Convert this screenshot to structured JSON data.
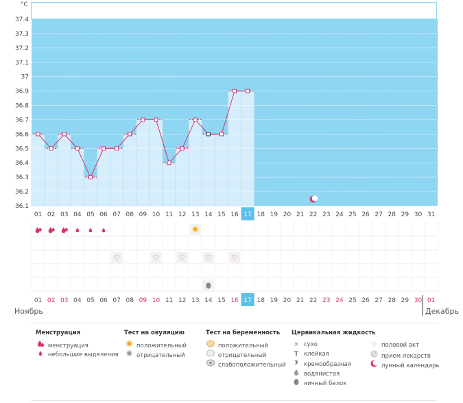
{
  "chart_data": {
    "type": "line",
    "ylabel": "°C",
    "y_ticks": [
      "37.4",
      "37.3",
      "37.2",
      "37.1",
      "37",
      "36.9",
      "36.8",
      "36.7",
      "36.6",
      "36.5",
      "36.4",
      "36.3",
      "36.2",
      "36.1"
    ],
    "ylim": [
      36.1,
      37.4
    ],
    "days": [
      "01",
      "02",
      "03",
      "04",
      "05",
      "06",
      "07",
      "08",
      "09",
      "10",
      "11",
      "12",
      "13",
      "14",
      "15",
      "16",
      "17",
      "18",
      "19",
      "20",
      "21",
      "22",
      "23",
      "24",
      "25",
      "26",
      "27",
      "28",
      "29",
      "30",
      "31"
    ],
    "series": [
      {
        "values": [
          36.6,
          36.5,
          36.6,
          36.5,
          36.3,
          36.5,
          36.5,
          36.6,
          36.7,
          36.7,
          36.4,
          36.5,
          36.7,
          36.6,
          36.6,
          36.9,
          36.9
        ]
      }
    ],
    "current_day_index": 16,
    "grid": true,
    "colors": {
      "band": "#8ed6f2",
      "bar": "#d6eefb",
      "line": "#d6336c",
      "today": "#5cc0e8"
    }
  },
  "markers": {
    "menstruation_heavy_days": [
      1,
      2,
      3
    ],
    "menstruation_light_days": [
      4,
      5,
      6
    ],
    "ovulation_positive_day": 13,
    "intercourse_days": [
      7,
      10,
      12,
      14,
      16
    ],
    "egg_white_day": 14,
    "lunar_day": 22
  },
  "bottom_days": [
    {
      "t": "01",
      "c": "#555"
    },
    {
      "t": "02",
      "c": "#d6336c"
    },
    {
      "t": "03",
      "c": "#d6336c"
    },
    {
      "t": "04",
      "c": "#555"
    },
    {
      "t": "05",
      "c": "#555"
    },
    {
      "t": "06",
      "c": "#555"
    },
    {
      "t": "07",
      "c": "#555"
    },
    {
      "t": "08",
      "c": "#555"
    },
    {
      "t": "09",
      "c": "#d6336c"
    },
    {
      "t": "10",
      "c": "#d6336c"
    },
    {
      "t": "11",
      "c": "#555"
    },
    {
      "t": "12",
      "c": "#555"
    },
    {
      "t": "13",
      "c": "#555"
    },
    {
      "t": "14",
      "c": "#555"
    },
    {
      "t": "15",
      "c": "#555"
    },
    {
      "t": "16",
      "c": "#d6336c"
    },
    {
      "t": "17",
      "c": "#ffffff"
    },
    {
      "t": "18",
      "c": "#555"
    },
    {
      "t": "19",
      "c": "#555"
    },
    {
      "t": "20",
      "c": "#555"
    },
    {
      "t": "21",
      "c": "#555"
    },
    {
      "t": "22",
      "c": "#555"
    },
    {
      "t": "23",
      "c": "#d6336c"
    },
    {
      "t": "24",
      "c": "#d6336c"
    },
    {
      "t": "25",
      "c": "#555"
    },
    {
      "t": "26",
      "c": "#555"
    },
    {
      "t": "27",
      "c": "#555"
    },
    {
      "t": "28",
      "c": "#555"
    },
    {
      "t": "29",
      "c": "#555"
    },
    {
      "t": "30",
      "c": "#d6336c"
    },
    {
      "t": "01",
      "c": "#d6336c"
    }
  ],
  "months": {
    "left": "Ноябрь",
    "right": "Декабрь"
  },
  "legend": {
    "menstruation": {
      "title": "Менструация",
      "items": [
        {
          "label": "менструация",
          "icon": "menstruation-heavy-icon"
        },
        {
          "label": "небольшие выделения",
          "icon": "menstruation-light-icon"
        }
      ]
    },
    "ovulation": {
      "title": "Тест на овуляцию",
      "items": [
        {
          "label": "положительный",
          "icon": "ovulation-positive-icon"
        },
        {
          "label": "отрицательный",
          "icon": "ovulation-negative-icon"
        }
      ]
    },
    "pregnancy": {
      "title": "Тест на беременность",
      "items": [
        {
          "label": "положительный",
          "icon": "pregnancy-positive-icon"
        },
        {
          "label": "отрицательный",
          "icon": "pregnancy-negative-icon"
        },
        {
          "label": "слабоположительный",
          "icon": "pregnancy-weak-icon"
        }
      ]
    },
    "fluid": {
      "title": "Цервикальная жидкость",
      "items": [
        {
          "label": "сухо",
          "icon": "dry-icon"
        },
        {
          "label": "клейкая",
          "icon": "sticky-icon"
        },
        {
          "label": "кремообразная",
          "icon": "creamy-icon"
        },
        {
          "label": "водянистая",
          "icon": "watery-icon"
        },
        {
          "label": "яичный белок",
          "icon": "egg-white-icon"
        }
      ]
    },
    "other": {
      "items": [
        {
          "label": "половой акт",
          "icon": "heart-icon"
        },
        {
          "label": "прием лекарств",
          "icon": "pill-icon"
        },
        {
          "label": "лунный календарь",
          "icon": "moon-icon"
        }
      ]
    }
  }
}
